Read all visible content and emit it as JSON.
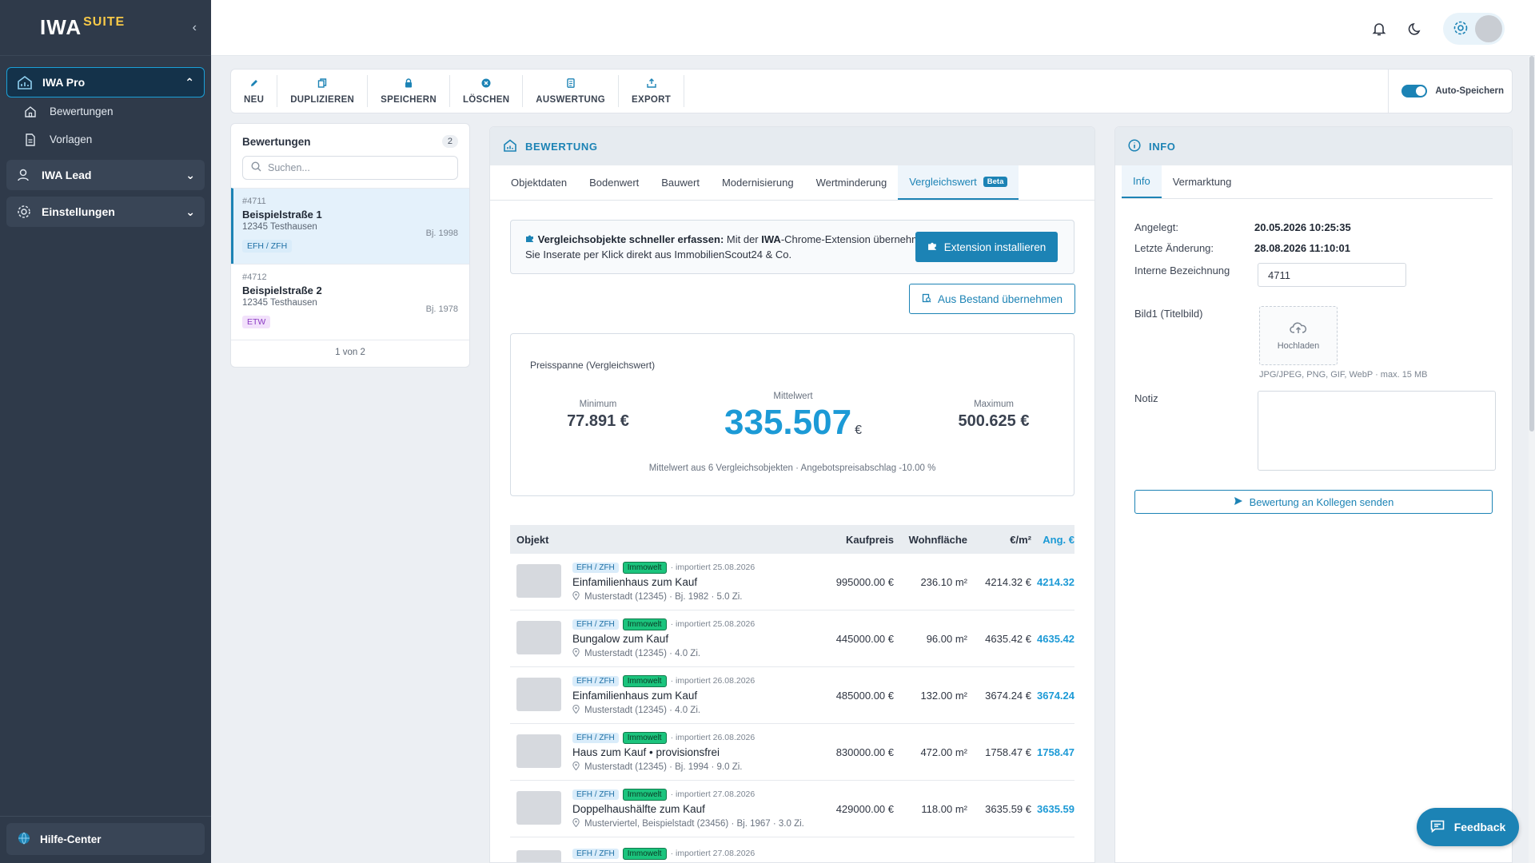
{
  "sidebar": {
    "logo": "IWA",
    "logo_suffix": "SUITE",
    "groups": [
      {
        "label": "IWA Pro"
      },
      {
        "label": "IWA Lead"
      },
      {
        "label": "Einstellungen"
      }
    ],
    "items": [
      {
        "label": "Bewertungen"
      },
      {
        "label": "Vorlagen"
      }
    ],
    "footer_label": "Hilfe-Center"
  },
  "toolbar": {
    "buttons": [
      {
        "label": "NEU",
        "icon": "pencil-icon"
      },
      {
        "label": "DUPLIZIEREN",
        "icon": "copy-icon"
      },
      {
        "label": "SPEICHERN",
        "icon": "lock-icon"
      },
      {
        "label": "LÖSCHEN",
        "icon": "delete-icon"
      },
      {
        "label": "AUSWERTUNG",
        "icon": "document-icon"
      },
      {
        "label": "EXPORT",
        "icon": "export-icon"
      }
    ],
    "autosave_label": "Auto-Speichern",
    "autosave_on": true
  },
  "list": {
    "title": "Bewertungen",
    "count": "2",
    "search_placeholder": "Suchen...",
    "items": [
      {
        "id": "#4711",
        "title": "Beispielstraße 1",
        "city": "12345 Testhausen",
        "year": "Bj. 1998",
        "tag": "EFH / ZFH"
      },
      {
        "id": "#4712",
        "title": "Beispielstraße 2",
        "city": "12345 Testhausen",
        "year": "Bj. 1978",
        "tag": "ETW"
      }
    ],
    "pagination": "1 von 2"
  },
  "center": {
    "title": "BEWERTUNG",
    "tabs": [
      {
        "label": "Objektdaten"
      },
      {
        "label": "Bodenwert"
      },
      {
        "label": "Bauwert"
      },
      {
        "label": "Modernisierung"
      },
      {
        "label": "Wertminderung"
      },
      {
        "label": "Vergleichswert"
      }
    ],
    "beta_label": "Beta",
    "banner_bold": "Vergleichsobjekte schneller erfassen:",
    "banner_text_1": " Mit der ",
    "banner_bold_2": "IWA",
    "banner_text_2": "-Chrome-Extension übernehmen Sie Inserate per Klick direkt aus ImmobilienScout24 & Co.",
    "install_button": "Extension installieren",
    "from_stock_button": "Aus Bestand übernehmen",
    "price": {
      "title": "Preisspanne (Vergleichswert)",
      "min_label": "Minimum",
      "min_value": "77.891 €",
      "mid_label": "Mittelwert",
      "mid_value": "335.507",
      "mid_currency": "€",
      "max_label": "Maximum",
      "max_value": "500.625 €",
      "note": "Mittelwert aus 6 Vergleichsobjekten · Angebotspreisabschlag -10.00 %"
    },
    "table": {
      "headers": {
        "objekt": "Objekt",
        "kaufpreis": "Kaufpreis",
        "wohnflaeche": "Wohnfläche",
        "qm": "€/m²",
        "ang": "Ang. €"
      },
      "rows": [
        {
          "tag": "EFH / ZFH",
          "source": "Immowelt",
          "imported": "· importiert 25.08.2026",
          "title": "Einfamilienhaus zum Kauf",
          "loc": "Musterstadt (12345) · Bj. 1982 · 5.0 Zi.",
          "kaufpreis": "995000.00 €",
          "flaeche": "236.10 m²",
          "qm": "4214.32 €",
          "ang": "4214.32"
        },
        {
          "tag": "EFH / ZFH",
          "source": "Immowelt",
          "imported": "· importiert 25.08.2026",
          "title": "Bungalow zum Kauf",
          "loc": "Musterstadt (12345) · 4.0 Zi.",
          "kaufpreis": "445000.00 €",
          "flaeche": "96.00 m²",
          "qm": "4635.42 €",
          "ang": "4635.42"
        },
        {
          "tag": "EFH / ZFH",
          "source": "Immowelt",
          "imported": "· importiert 26.08.2026",
          "title": "Einfamilienhaus zum Kauf",
          "loc": "Musterstadt (12345) · 4.0 Zi.",
          "kaufpreis": "485000.00 €",
          "flaeche": "132.00 m²",
          "qm": "3674.24 €",
          "ang": "3674.24"
        },
        {
          "tag": "EFH / ZFH",
          "source": "Immowelt",
          "imported": "· importiert 26.08.2026",
          "title": "Haus zum Kauf • provisionsfrei",
          "loc": "Musterstadt (12345) · Bj. 1994 · 9.0 Zi.",
          "kaufpreis": "830000.00 €",
          "flaeche": "472.00 m²",
          "qm": "1758.47 €",
          "ang": "1758.47"
        },
        {
          "tag": "EFH / ZFH",
          "source": "Immowelt",
          "imported": "· importiert 27.08.2026",
          "title": "Doppelhaushälfte zum Kauf",
          "loc": "Musterviertel, Beispielstadt (23456) · Bj. 1967 · 3.0 Zi.",
          "kaufpreis": "429000.00 €",
          "flaeche": "118.00 m²",
          "qm": "3635.59 €",
          "ang": "3635.59"
        },
        {
          "tag": "EFH / ZFH",
          "source": "Immowelt",
          "imported": "· importiert 27.08.2026",
          "title": "",
          "loc": "",
          "kaufpreis": "",
          "flaeche": "",
          "qm": "",
          "ang": ""
        }
      ]
    }
  },
  "info": {
    "title": "INFO",
    "tabs": [
      {
        "label": "Info"
      },
      {
        "label": "Vermarktung"
      }
    ],
    "angelegt_label": "Angelegt:",
    "angelegt_value": "20.05.2026 10:25:35",
    "aenderung_label": "Letzte Änderung:",
    "aenderung_value": "28.08.2026 11:10:01",
    "intern_label": "Interne Bezeichnung",
    "intern_value": "4711",
    "bild_label": "Bild1 (Titelbild)",
    "upload_label": "Hochladen",
    "upload_hint": "JPG/JPEG, PNG, GIF, WebP · max. 15 MB",
    "notiz_label": "Notiz",
    "send_button": "Bewertung an Kollegen senden"
  },
  "feedback_label": "Feedback",
  "colors": {
    "accent": "#1c83b5",
    "sidebar": "#2f3a4a",
    "highlight": "#1c9ad6"
  }
}
